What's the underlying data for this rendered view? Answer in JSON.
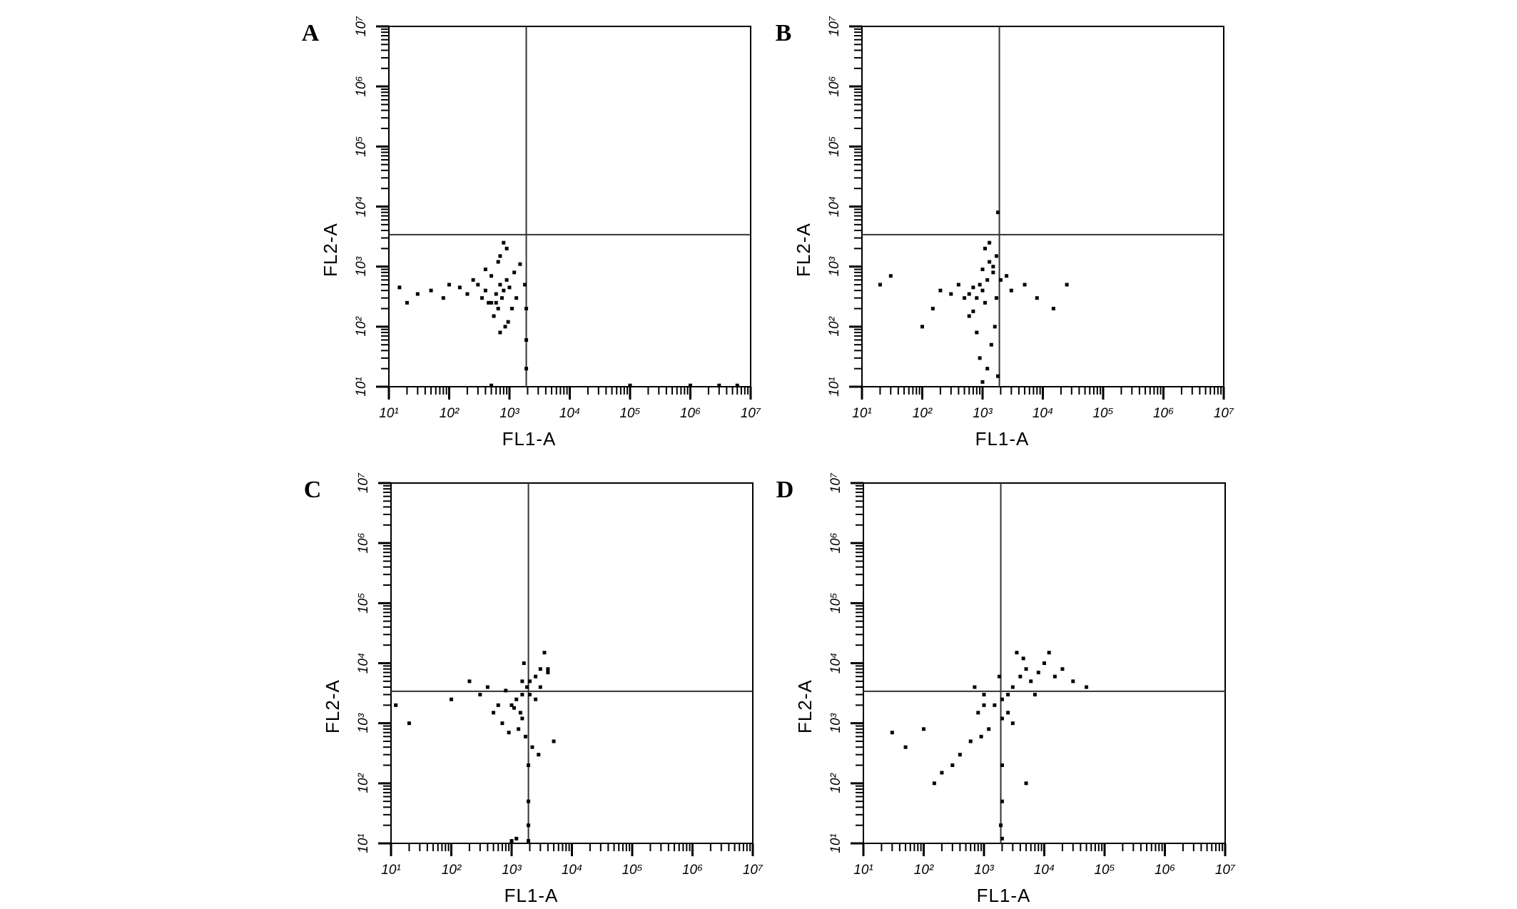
{
  "chart_data": [
    {
      "type": "scatter",
      "panel_label": "A",
      "xlabel": "FL1-A",
      "ylabel": "FL2-A",
      "xscale": "log",
      "yscale": "log",
      "color": "#000000",
      "xlim": [
        10,
        10000000
      ],
      "ylim": [
        10,
        10000000
      ],
      "xticks": [
        {
          "value": 10,
          "label": "10¹"
        },
        {
          "value": 100,
          "label": "10²"
        },
        {
          "value": 1000,
          "label": "10³"
        },
        {
          "value": 10000,
          "label": "10⁴"
        },
        {
          "value": 100000,
          "label": "10⁵"
        },
        {
          "value": 1000000,
          "label": "10⁶"
        },
        {
          "value": 10000000,
          "label": "10⁷"
        }
      ],
      "yticks": [
        {
          "value": 10,
          "label": "10¹"
        },
        {
          "value": 100,
          "label": "10²"
        },
        {
          "value": 1000,
          "label": "10³"
        },
        {
          "value": 10000,
          "label": "10⁴"
        },
        {
          "value": 100000,
          "label": "10⁵"
        },
        {
          "value": 1000000,
          "label": "10⁶"
        },
        {
          "value": 10000000,
          "label": "10⁷"
        }
      ],
      "quadrant_x": 1900,
      "quadrant_y": 3400,
      "x": [
        600,
        700,
        500,
        800,
        900,
        650,
        550,
        750,
        1000,
        1200,
        450,
        400,
        300,
        350,
        250,
        200,
        150,
        100,
        80,
        50,
        30,
        20,
        15,
        1100,
        950,
        850,
        700,
        600,
        500,
        400,
        1500,
        1800,
        1900,
        1900,
        1900,
        700,
        800,
        100000,
        1000000,
        3000000,
        6000000,
        500,
        1300,
        900,
        650
      ],
      "y": [
        350,
        500,
        250,
        400,
        600,
        200,
        150,
        300,
        450,
        800,
        250,
        400,
        500,
        300,
        600,
        350,
        450,
        500,
        300,
        400,
        350,
        250,
        450,
        200,
        120,
        100,
        80,
        250,
        700,
        900,
        1100,
        500,
        200,
        60,
        20,
        1500,
        2500,
        10.5,
        10.5,
        10.5,
        10.5,
        10.5,
        300,
        2000,
        1200
      ]
    },
    {
      "type": "scatter",
      "panel_label": "B",
      "xlabel": "FL1-A",
      "ylabel": "FL2-A",
      "xscale": "log",
      "yscale": "log",
      "color": "#000000",
      "xlim": [
        10,
        10000000
      ],
      "ylim": [
        10,
        10000000
      ],
      "xticks": [
        {
          "value": 10,
          "label": "10¹"
        },
        {
          "value": 100,
          "label": "10²"
        },
        {
          "value": 1000,
          "label": "10³"
        },
        {
          "value": 10000,
          "label": "10⁴"
        },
        {
          "value": 100000,
          "label": "10⁵"
        },
        {
          "value": 1000000,
          "label": "10⁶"
        },
        {
          "value": 10000000,
          "label": "10⁷"
        }
      ],
      "yticks": [
        {
          "value": 10,
          "label": "10¹"
        },
        {
          "value": 100,
          "label": "10²"
        },
        {
          "value": 1000,
          "label": "10³"
        },
        {
          "value": 10000,
          "label": "10⁴"
        },
        {
          "value": 100000,
          "label": "10⁵"
        },
        {
          "value": 1000000,
          "label": "10⁶"
        },
        {
          "value": 10000000,
          "label": "10⁷"
        }
      ],
      "quadrant_x": 1900,
      "quadrant_y": 3400,
      "x": [
        1000,
        1200,
        800,
        1500,
        900,
        1100,
        700,
        600,
        1300,
        1700,
        500,
        400,
        300,
        200,
        150,
        100,
        30,
        20,
        2000,
        3000,
        5000,
        8000,
        15000,
        25000,
        1800,
        1600,
        1400,
        1200,
        1000,
        900,
        800,
        1100,
        1300,
        1700,
        1800,
        600,
        700,
        1000,
        1500,
        2500
      ],
      "y": [
        400,
        600,
        300,
        800,
        500,
        250,
        450,
        350,
        1200,
        1500,
        300,
        500,
        350,
        400,
        200,
        100,
        700,
        500,
        600,
        400,
        500,
        300,
        200,
        500,
        8000,
        100,
        50,
        20,
        12,
        30,
        80,
        2000,
        2500,
        300,
        15,
        150,
        180,
        900,
        1000,
        700
      ]
    },
    {
      "type": "scatter",
      "panel_label": "C",
      "xlabel": "FL1-A",
      "ylabel": "FL2-A",
      "xscale": "log",
      "yscale": "log",
      "color": "#000000",
      "xlim": [
        10,
        10000000
      ],
      "ylim": [
        10,
        10000000
      ],
      "xticks": [
        {
          "value": 10,
          "label": "10¹"
        },
        {
          "value": 100,
          "label": "10²"
        },
        {
          "value": 1000,
          "label": "10³"
        },
        {
          "value": 10000,
          "label": "10⁴"
        },
        {
          "value": 100000,
          "label": "10⁵"
        },
        {
          "value": 1000000,
          "label": "10⁶"
        },
        {
          "value": 10000000,
          "label": "10⁷"
        }
      ],
      "yticks": [
        {
          "value": 10,
          "label": "10¹"
        },
        {
          "value": 100,
          "label": "10²"
        },
        {
          "value": 1000,
          "label": "10³"
        },
        {
          "value": 10000,
          "label": "10⁴"
        },
        {
          "value": 100000,
          "label": "10⁵"
        },
        {
          "value": 1000000,
          "label": "10⁶"
        },
        {
          "value": 10000000,
          "label": "10⁷"
        }
      ],
      "quadrant_x": 1900,
      "quadrant_y": 3400,
      "x": [
        1500,
        1800,
        1200,
        2000,
        2500,
        1000,
        3000,
        4000,
        800,
        600,
        400,
        300,
        200,
        100,
        20,
        12,
        1500,
        1300,
        1700,
        2200,
        2800,
        3500,
        5000,
        1400,
        1600,
        1900,
        1900,
        1900,
        1900,
        1000,
        1200,
        2500,
        3000,
        4000,
        1100,
        900,
        2000,
        1500,
        700,
        500
      ],
      "y": [
        3000,
        4000,
        2500,
        5000,
        6000,
        2000,
        8000,
        7000,
        3500,
        2000,
        4000,
        3000,
        5000,
        2500,
        1000,
        2000,
        1200,
        800,
        600,
        400,
        300,
        15000,
        500,
        1500,
        10000,
        200,
        50,
        20,
        11,
        11,
        12,
        2500,
        4000,
        8000,
        1800,
        700,
        3000,
        5000,
        1000,
        1500
      ]
    },
    {
      "type": "scatter",
      "panel_label": "D",
      "xlabel": "FL1-A",
      "ylabel": "FL2-A",
      "xscale": "log",
      "yscale": "log",
      "color": "#000000",
      "xlim": [
        10,
        10000000
      ],
      "ylim": [
        10,
        10000000
      ],
      "xticks": [
        {
          "value": 10,
          "label": "10¹"
        },
        {
          "value": 100,
          "label": "10²"
        },
        {
          "value": 1000,
          "label": "10³"
        },
        {
          "value": 10000,
          "label": "10⁴"
        },
        {
          "value": 100000,
          "label": "10⁵"
        },
        {
          "value": 1000000,
          "label": "10⁶"
        },
        {
          "value": 10000000,
          "label": "10⁷"
        }
      ],
      "yticks": [
        {
          "value": 10,
          "label": "10¹"
        },
        {
          "value": 100,
          "label": "10²"
        },
        {
          "value": 1000,
          "label": "10³"
        },
        {
          "value": 10000,
          "label": "10⁴"
        },
        {
          "value": 100000,
          "label": "10⁵"
        },
        {
          "value": 1000000,
          "label": "10⁶"
        },
        {
          "value": 10000000,
          "label": "10⁷"
        }
      ],
      "quadrant_x": 1900,
      "quadrant_y": 3400,
      "x": [
        3000,
        4000,
        2500,
        5000,
        6000,
        2000,
        1500,
        1000,
        800,
        8000,
        10000,
        15000,
        20000,
        30000,
        50000,
        3500,
        4500,
        2000,
        1200,
        900,
        600,
        400,
        300,
        200,
        150,
        100,
        50,
        30,
        2000,
        2000,
        2000,
        1900,
        5000,
        3000,
        1000,
        700,
        7000,
        12000,
        2500,
        1800
      ],
      "y": [
        4000,
        6000,
        3000,
        8000,
        5000,
        2500,
        2000,
        3000,
        1500,
        7000,
        10000,
        6000,
        8000,
        5000,
        4000,
        15000,
        12000,
        1200,
        800,
        600,
        500,
        300,
        200,
        150,
        100,
        800,
        400,
        700,
        200,
        50,
        12,
        20,
        100,
        1000,
        2000,
        4000,
        3000,
        15000,
        1500,
        6000
      ]
    }
  ]
}
